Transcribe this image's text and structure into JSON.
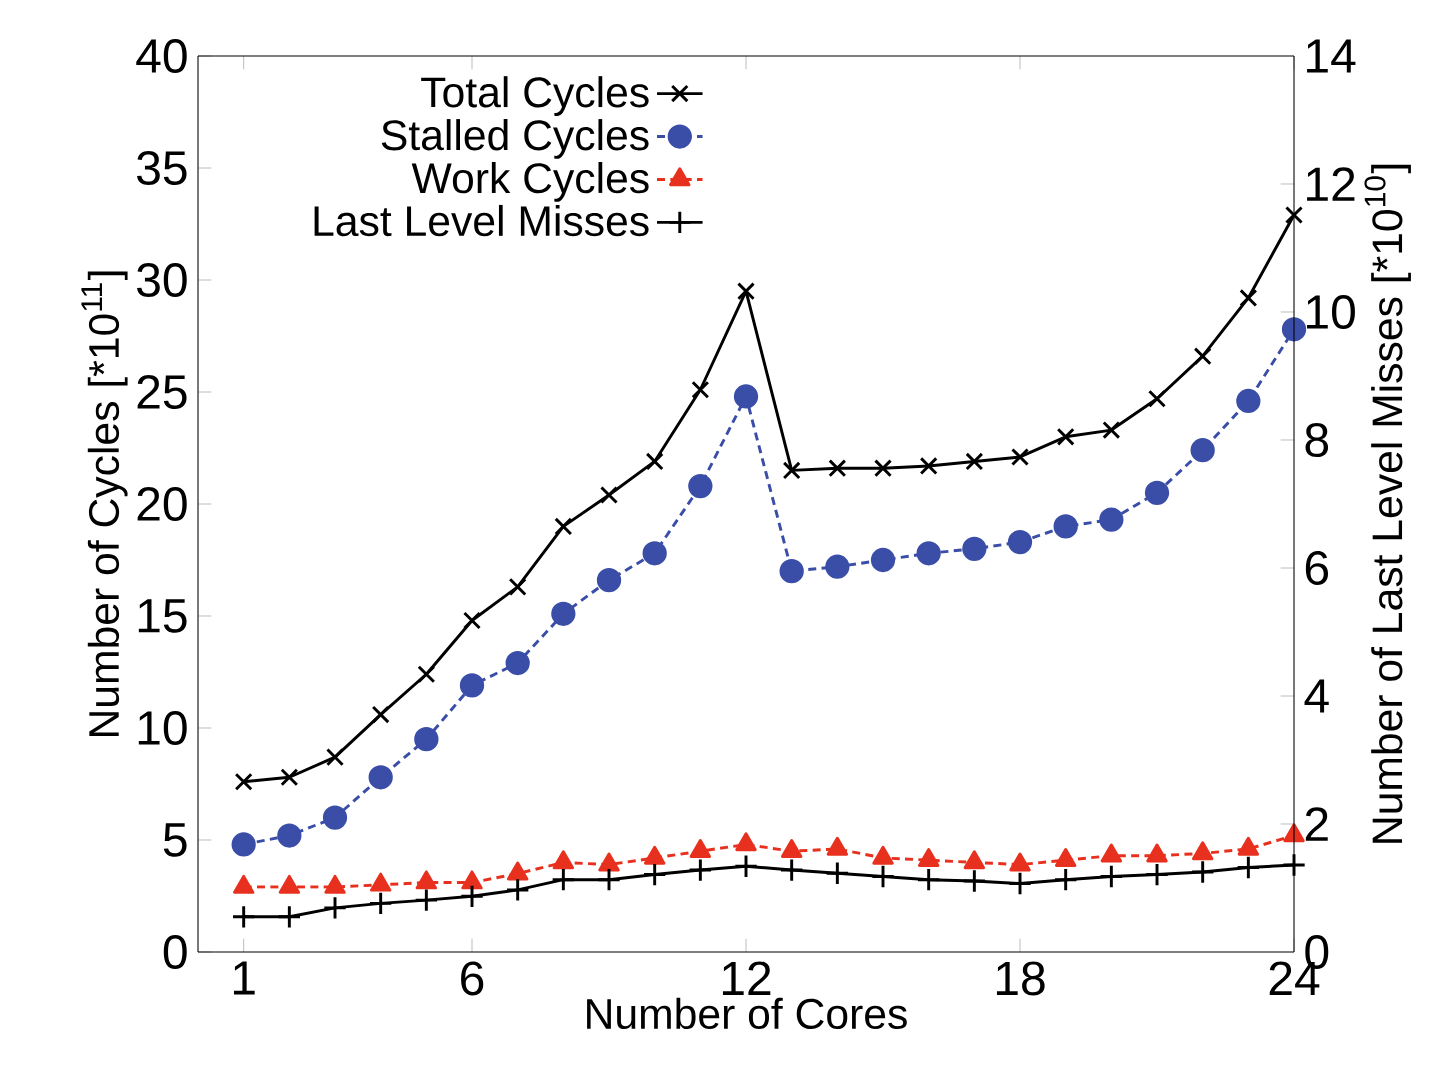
{
  "chart_data": {
    "type": "line",
    "xlabel": "Number of Cores",
    "ylabel": "Number of Cycles [*10$^{11}$]",
    "y2label": "Number of Last Level Misses [*10$^{10}$]",
    "x": [
      1,
      2,
      3,
      4,
      5,
      6,
      7,
      8,
      9,
      10,
      11,
      12,
      13,
      14,
      15,
      16,
      17,
      18,
      19,
      20,
      21,
      22,
      23,
      24
    ],
    "series": [
      {
        "name": "Total Cycles",
        "color": "#000000",
        "marker": "cross",
        "line_style": "solid",
        "axis": "y",
        "values": [
          7.6,
          7.8,
          8.7,
          10.6,
          12.4,
          14.8,
          16.3,
          19.0,
          20.4,
          21.9,
          25.1,
          29.5,
          21.5,
          21.6,
          21.6,
          21.7,
          21.9,
          22.1,
          23.0,
          23.3,
          24.7,
          26.6,
          29.2,
          32.9
        ]
      },
      {
        "name": "Stalled Cycles",
        "color": "#3a4ea8",
        "marker": "circle",
        "line_style": "dashed",
        "axis": "y",
        "values": [
          4.8,
          5.2,
          6.0,
          7.8,
          9.5,
          11.9,
          12.9,
          15.1,
          16.6,
          17.8,
          20.8,
          24.8,
          17.0,
          17.2,
          17.5,
          17.8,
          18.0,
          18.3,
          19.0,
          19.3,
          20.5,
          22.4,
          24.6,
          27.8
        ]
      },
      {
        "name": "Work Cycles",
        "color": "#e8301f",
        "marker": "triangle",
        "line_style": "dashed",
        "axis": "y",
        "values": [
          2.9,
          2.9,
          2.9,
          3.0,
          3.1,
          3.1,
          3.5,
          4.0,
          3.9,
          4.2,
          4.5,
          4.8,
          4.5,
          4.6,
          4.2,
          4.1,
          4.0,
          3.9,
          4.1,
          4.3,
          4.3,
          4.4,
          4.6,
          5.2
        ]
      },
      {
        "name": "Last Level Misses",
        "color": "#000000",
        "marker": "plus",
        "line_style": "solid",
        "axis": "y2",
        "values": [
          0.55,
          0.55,
          0.69,
          0.76,
          0.81,
          0.87,
          0.97,
          1.13,
          1.13,
          1.21,
          1.28,
          1.34,
          1.28,
          1.23,
          1.18,
          1.13,
          1.11,
          1.07,
          1.13,
          1.18,
          1.21,
          1.25,
          1.32,
          1.36
        ]
      }
    ],
    "xlim": [
      0,
      24
    ],
    "xticks": [
      1,
      6,
      12,
      18,
      24
    ],
    "ylim": [
      0,
      40
    ],
    "yticks": [
      0,
      5,
      10,
      15,
      20,
      25,
      30,
      35,
      40
    ],
    "y2lim": [
      0,
      14
    ],
    "y2ticks": [
      0,
      2,
      4,
      6,
      8,
      10,
      12,
      14
    ],
    "grid": false,
    "legend": "top left"
  }
}
